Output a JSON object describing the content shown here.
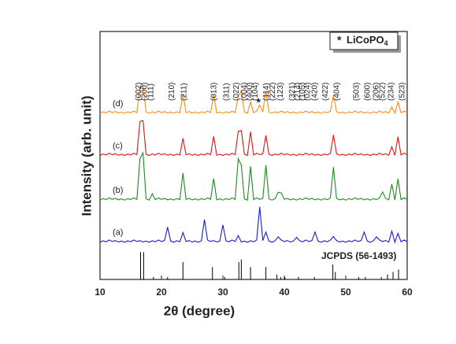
{
  "chart_data": {
    "type": "line",
    "x_label": "2θ (degree)",
    "y_label": "Intensity (arb. unit)",
    "xlim": [
      10,
      60
    ],
    "xticks": [
      10,
      20,
      30,
      40,
      50,
      60
    ],
    "ylim": [
      0,
      100
    ],
    "x": [
      10,
      10.5,
      11,
      11.5,
      12,
      12.5,
      13,
      13.5,
      14,
      14.5,
      15,
      15.5,
      16,
      16.5,
      17,
      17.5,
      18,
      18.5,
      19,
      19.5,
      20,
      20.5,
      21,
      21.5,
      22,
      22.5,
      23,
      23.5,
      24,
      24.5,
      25,
      25.5,
      26,
      26.5,
      27,
      27.5,
      28,
      28.5,
      29,
      29.5,
      30,
      30.5,
      31,
      31.5,
      32,
      32.5,
      33,
      33.5,
      34,
      34.5,
      35,
      35.5,
      36,
      36.5,
      37,
      37.5,
      38,
      38.5,
      39,
      39.5,
      40,
      40.5,
      41,
      41.5,
      42,
      42.5,
      43,
      43.5,
      44,
      44.5,
      45,
      45.5,
      46,
      46.5,
      47,
      47.5,
      48,
      48.5,
      49,
      49.5,
      50,
      50.5,
      51,
      51.5,
      52,
      52.5,
      53,
      53.5,
      54,
      54.5,
      55,
      55.5,
      56,
      56.5,
      57,
      57.5,
      58,
      58.5,
      59,
      59.5,
      60
    ],
    "series": [
      {
        "name": "(a)",
        "color": "#1a1ad8",
        "values": [
          15,
          15.6,
          15.2,
          15.9,
          15.3,
          15.7,
          15.1,
          15.5,
          15,
          15.6,
          15.2,
          15.9,
          15.3,
          15.7,
          15.1,
          15.5,
          15,
          15.6,
          15.2,
          15.9,
          15.3,
          15.7,
          21.1,
          15.5,
          15,
          15.6,
          15.2,
          18.9,
          15.3,
          15.7,
          15.1,
          15.5,
          15,
          15.6,
          24.2,
          15.9,
          15.3,
          15.7,
          15.1,
          15.5,
          22,
          15.6,
          15.2,
          15.9,
          15.3,
          17.7,
          15.1,
          15.5,
          15,
          15.6,
          15.2,
          15.9,
          29.3,
          15.7,
          19.1,
          15.5,
          15,
          15.6,
          17.2,
          15.9,
          15.3,
          15.7,
          15.1,
          15.5,
          17,
          15.6,
          15.2,
          15.9,
          15.3,
          15.7,
          19.1,
          15.5,
          15,
          15.6,
          15.2,
          15.9,
          17.3,
          15.7,
          15.1,
          15.5,
          15,
          15.6,
          15.2,
          15.9,
          15.3,
          15.7,
          19.1,
          15.5,
          15,
          15.6,
          17.2,
          15.9,
          15.3,
          15.7,
          15.1,
          19.5,
          15,
          18.6,
          15.2,
          15.9,
          15.3
        ]
      },
      {
        "name": "(b)",
        "color": "#1e8a1e",
        "values": [
          32,
          32.6,
          32.2,
          32.9,
          32.3,
          32.7,
          32.1,
          32.5,
          32,
          32.6,
          32.2,
          32.9,
          32.3,
          48.7,
          51.1,
          32.5,
          32,
          34.6,
          32.2,
          32.9,
          32.3,
          32.7,
          32.1,
          32.5,
          32,
          32.6,
          32.2,
          42.9,
          32.3,
          32.7,
          32.1,
          32.5,
          32,
          32.6,
          32.2,
          32.9,
          32.3,
          40.7,
          32.1,
          32.5,
          32,
          32.6,
          32.2,
          32.9,
          32.3,
          48.7,
          46.1,
          32.5,
          32,
          45.6,
          32.2,
          32.9,
          32.3,
          32.7,
          46.1,
          32.5,
          32,
          32.6,
          35.2,
          34.9,
          32.3,
          32.7,
          32.1,
          32.5,
          32,
          32.6,
          32.2,
          32.9,
          32.3,
          32.7,
          32.1,
          32.5,
          32,
          32.6,
          32.2,
          32.9,
          45.3,
          32.7,
          32.1,
          32.5,
          32,
          32.6,
          32.2,
          32.9,
          32.3,
          32.7,
          32.1,
          32.5,
          32,
          32.6,
          32.2,
          32.9,
          35.3,
          32.7,
          32.1,
          38.5,
          32,
          40.6,
          32.2,
          32.9,
          32.3
        ]
      },
      {
        "name": "(c)",
        "color": "#e01414",
        "values": [
          50,
          50.6,
          50.2,
          50.9,
          50.3,
          50.7,
          50.1,
          50.5,
          50,
          50.6,
          50.2,
          50.9,
          50.3,
          63.7,
          64.1,
          50.5,
          50,
          50.6,
          50.2,
          50.9,
          50.3,
          50.7,
          50.1,
          50.5,
          50,
          50.6,
          50.2,
          56.9,
          50.3,
          50.7,
          50.1,
          50.5,
          50,
          50.6,
          50.2,
          50.9,
          50.3,
          57.7,
          50.1,
          50.5,
          50,
          50.6,
          50.2,
          50.9,
          50.3,
          59.7,
          60.1,
          50.5,
          50,
          59.6,
          50.2,
          50.9,
          50.3,
          50.7,
          58.1,
          50.5,
          50,
          50.6,
          50.2,
          50.9,
          50.3,
          50.7,
          50.1,
          50.5,
          50,
          50.6,
          50.2,
          50.9,
          50.3,
          50.7,
          50.1,
          50.5,
          50,
          50.6,
          50.2,
          50.9,
          58.3,
          50.7,
          50.1,
          50.5,
          50,
          50.6,
          50.2,
          50.9,
          50.3,
          50.7,
          50.1,
          50.5,
          50,
          50.6,
          50.2,
          50.9,
          50.3,
          50.7,
          50.1,
          53.5,
          50,
          57.6,
          50.2,
          50.9,
          50.3
        ]
      },
      {
        "name": "(d)",
        "color": "#ff8c14",
        "values": [
          67,
          67.6,
          67.2,
          67.9,
          67.3,
          67.7,
          67.1,
          67.5,
          67,
          67.6,
          67.2,
          67.9,
          67.3,
          77.7,
          78.1,
          67.5,
          67,
          67.6,
          67.2,
          67.9,
          67.3,
          67.7,
          67.1,
          67.5,
          67,
          67.6,
          67.2,
          74.9,
          67.3,
          67.7,
          67.1,
          67.5,
          67,
          67.6,
          67.2,
          67.9,
          67.3,
          74.7,
          67.1,
          67.5,
          67,
          67.6,
          67.2,
          67.9,
          67.3,
          73.7,
          76.1,
          67.5,
          67,
          71.6,
          67.2,
          67.9,
          70.3,
          67.7,
          76.1,
          67.5,
          67,
          67.6,
          67.2,
          67.9,
          67.3,
          67.7,
          67.1,
          67.5,
          67,
          67.6,
          67.2,
          67.9,
          67.3,
          67.7,
          67.1,
          67.5,
          67,
          67.6,
          67.2,
          67.9,
          74.3,
          67.7,
          67.1,
          67.5,
          67,
          67.6,
          67.2,
          67.9,
          67.3,
          67.7,
          67.1,
          67.5,
          67,
          67.6,
          67.2,
          67.9,
          67.3,
          67.7,
          67.1,
          69.5,
          67,
          71.6,
          67.2,
          67.9,
          67.3
        ]
      }
    ],
    "reference": {
      "name": "JCPDS (56-1493)",
      "color": "#000000",
      "x": [
        16.6,
        17.1,
        18.7,
        21,
        23.5,
        28.3,
        30.3,
        32.6,
        33,
        34.5,
        37,
        38.8,
        39.4,
        40.1,
        42.3,
        44.9,
        47.9,
        48.3,
        52.1,
        53.2,
        55.8,
        56.8,
        57.7,
        58.6
      ],
      "values": [
        11,
        11,
        1,
        1,
        7,
        5,
        1,
        7,
        8,
        5,
        5,
        2,
        1,
        1,
        1,
        1,
        6,
        3,
        1,
        1,
        1,
        2,
        3,
        4
      ]
    },
    "annotations": [
      {
        "text": "(002)",
        "x": 16.3
      },
      {
        "text": "(200)",
        "x": 17.3
      },
      {
        "text": "(111)",
        "x": 18.3
      },
      {
        "text": "(210)",
        "x": 21.7
      },
      {
        "text": "(211)",
        "x": 23.7
      },
      {
        "text": "(013)",
        "x": 28.6
      },
      {
        "text": "(311)",
        "x": 30.6
      },
      {
        "text": "(022)",
        "x": 32.2
      },
      {
        "text": "(004)",
        "x": 33.5
      },
      {
        "text": "(400)",
        "x": 34.4
      },
      {
        "text": "(104)",
        "x": 35.3
      },
      {
        "text": "(114)",
        "x": 37.1
      },
      {
        "text": "(222)",
        "x": 38.1
      },
      {
        "text": "(123)",
        "x": 39.4
      },
      {
        "text": "(321)",
        "x": 41.3
      },
      {
        "text": "(214)",
        "x": 42.2
      },
      {
        "text": "(105)",
        "x": 43.0
      },
      {
        "text": "(024)",
        "x": 43.8
      },
      {
        "text": "(420)",
        "x": 45.0
      },
      {
        "text": "(422)",
        "x": 46.7
      },
      {
        "text": "(404)",
        "x": 48.6
      },
      {
        "text": "(503)",
        "x": 51.8
      },
      {
        "text": "(600)",
        "x": 53.6
      },
      {
        "text": "(206)",
        "x": 55.0
      },
      {
        "text": "(522)",
        "x": 56.0
      },
      {
        "text": "(234)",
        "x": 57.4
      },
      {
        "text": "(523)",
        "x": 59.2
      }
    ],
    "impurity": {
      "symbol": "*",
      "color": "#8b2be2",
      "x": 35.8,
      "label": "LiCoPO",
      "label_subscript": "4"
    }
  }
}
